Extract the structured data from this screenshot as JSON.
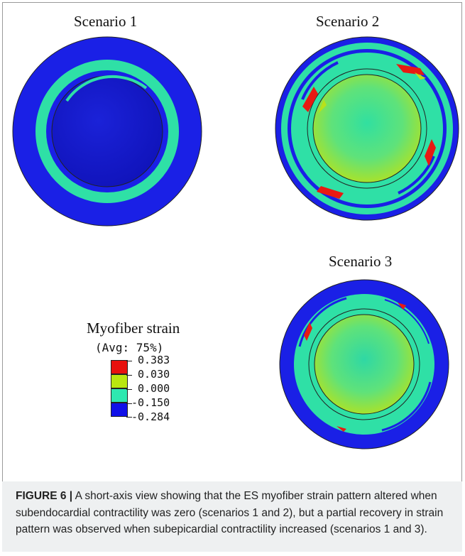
{
  "figure": {
    "scenarios": [
      {
        "title": "Scenario 1"
      },
      {
        "title": "Scenario 2"
      },
      {
        "title": "Scenario 3"
      }
    ],
    "legend": {
      "title": "Myofiber strain",
      "subtitle": "(Avg: 75%)",
      "entries": [
        {
          "color": "#e8110e",
          "value": "0.383"
        },
        {
          "color": "#b9e60f",
          "value": "0.030"
        },
        {
          "color": "#2ee8b0",
          "value": "0.000"
        },
        {
          "color": "#1010e8",
          "value": "-0.150"
        },
        {
          "value": "-0.284"
        }
      ]
    },
    "colors": {
      "deep_blue": "#1515d0",
      "blue": "#1a20e6",
      "cyan_green": "#29e0a8",
      "green": "#35e08a",
      "yellow_green": "#b8e21a",
      "red": "#e81a12"
    }
  },
  "caption": {
    "label": "FIGURE 6 |",
    "text": " A short-axis view showing that the ES myofiber strain pattern altered when subendocardial contractility was zero (scenarios 1 and 2), but a partial recovery in strain pattern was observed when subepicardial contractility increased (scenarios 1 and 3)."
  }
}
